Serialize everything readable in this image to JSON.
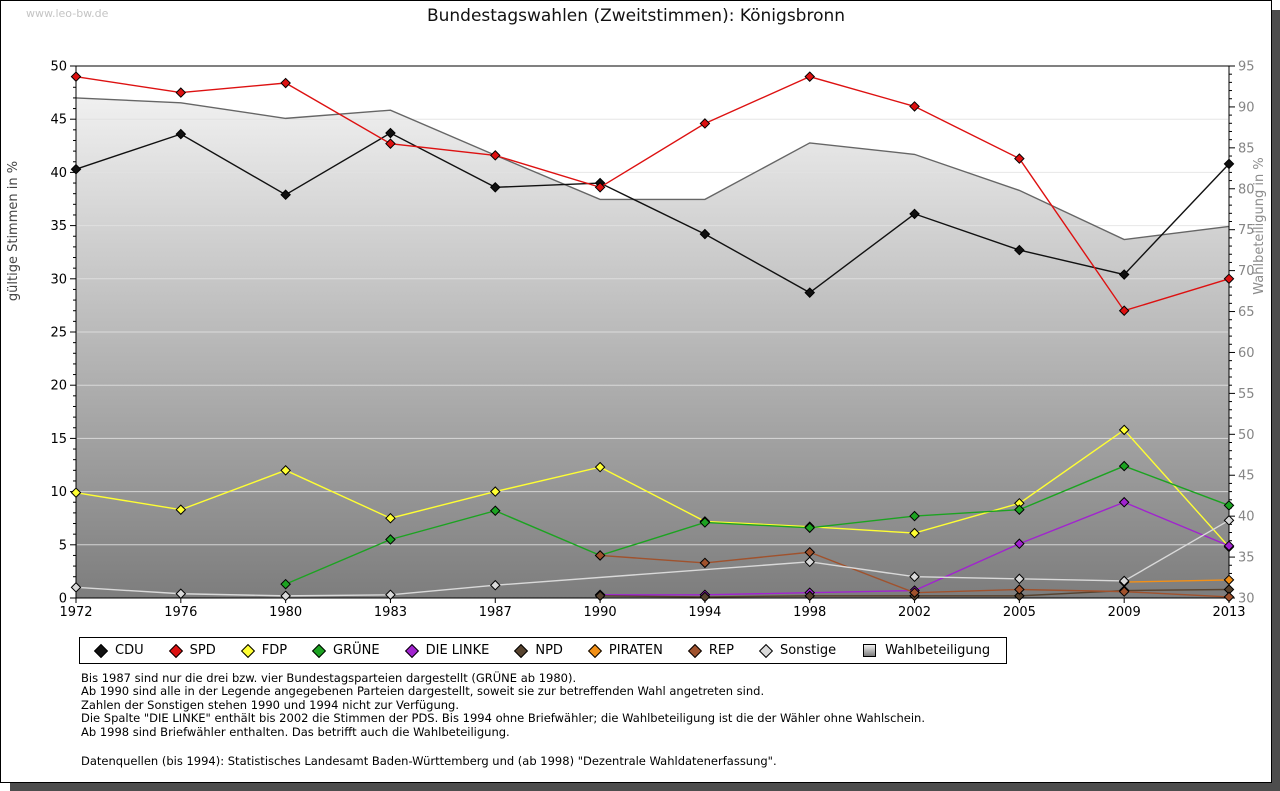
{
  "watermark": "www.leo-bw.de",
  "title": "Bundestagswahlen (Zweitstimmen): Königsbronn",
  "chart_data": {
    "type": "line",
    "x": [
      1972,
      1976,
      1980,
      1983,
      1987,
      1990,
      1994,
      1998,
      2002,
      2005,
      2009,
      2013
    ],
    "left_axis": {
      "label": "gültige Stimmen in %",
      "range": [
        0,
        50
      ],
      "tick_step": 5
    },
    "right_axis": {
      "label": "Wahlbeteiligung in %",
      "range": [
        30,
        95
      ],
      "tick_step": 5
    },
    "grid": "horizontal, every 5 units of left axis",
    "legend_position": "bottom",
    "series": [
      {
        "name": "CDU",
        "color": "#111111",
        "values": [
          40.3,
          43.6,
          37.9,
          43.7,
          38.6,
          39.0,
          34.2,
          28.7,
          36.1,
          32.7,
          30.4,
          40.8
        ]
      },
      {
        "name": "SPD",
        "color": "#dd1111",
        "values": [
          49.0,
          47.5,
          48.4,
          42.7,
          41.6,
          38.6,
          44.6,
          49.0,
          46.2,
          41.3,
          27.0,
          30.0
        ]
      },
      {
        "name": "FDP",
        "color": "#ffff33",
        "values": [
          9.9,
          8.3,
          12.0,
          7.5,
          10.0,
          12.3,
          7.2,
          6.7,
          6.1,
          8.9,
          15.8,
          4.8
        ]
      },
      {
        "name": "GRÜNE",
        "color": "#1ca321",
        "values": [
          null,
          null,
          1.3,
          5.5,
          8.2,
          4.0,
          7.1,
          6.6,
          7.7,
          8.3,
          12.4,
          8.7
        ]
      },
      {
        "name": "DIE LINKE",
        "color": "#a123cf",
        "values": [
          null,
          null,
          null,
          null,
          null,
          0.3,
          0.3,
          0.5,
          0.7,
          5.1,
          9.0,
          4.9
        ]
      },
      {
        "name": "NPD",
        "color": "#57432f",
        "values": [
          null,
          null,
          null,
          null,
          null,
          0.2,
          0.1,
          0.2,
          0.2,
          0.2,
          0.7,
          0.8
        ]
      },
      {
        "name": "PIRATEN",
        "color": "#f39016",
        "values": [
          null,
          null,
          null,
          null,
          null,
          null,
          null,
          null,
          null,
          null,
          1.5,
          1.7
        ]
      },
      {
        "name": "REP",
        "color": "#a0522d",
        "values": [
          null,
          null,
          null,
          null,
          null,
          4.0,
          3.3,
          4.3,
          0.5,
          0.8,
          0.6,
          0.1
        ]
      },
      {
        "name": "Sonstige",
        "color": "#d9d9d9",
        "values": [
          1.0,
          0.4,
          0.2,
          0.3,
          1.2,
          null,
          null,
          3.4,
          2.0,
          1.8,
          1.6,
          7.3
        ]
      }
    ],
    "turnout": {
      "name": "Wahlbeteiligung",
      "axis": "right",
      "edge_color": "#666666",
      "fill_top": "#f0f0f0",
      "fill_bottom": "#7d7d7d",
      "values": [
        91.1,
        90.5,
        88.6,
        89.6,
        84.1,
        78.7,
        78.7,
        85.6,
        84.2,
        79.8,
        73.8,
        75.4
      ]
    }
  },
  "footnotes": [
    "Bis 1987 sind nur die drei bzw. vier Bundestagsparteien dargestellt (GRÜNE ab 1980).",
    "Ab 1990 sind alle in der Legende angegebenen Parteien dargestellt, soweit sie zur betreffenden Wahl angetreten sind.",
    "Zahlen der Sonstigen stehen 1990 und 1994 nicht zur Verfügung.",
    "Die Spalte \"DIE LINKE\" enthält bis 2002 die Stimmen der PDS. Bis 1994 ohne Briefwähler; die Wahlbeteiligung ist die der Wähler ohne Wahlschein.",
    "Ab 1998 sind Briefwähler enthalten. Das betrifft auch die Wahlbeteiligung."
  ],
  "source": "Datenquellen (bis 1994): Statistisches Landesamt Baden-Württemberg und (ab 1998) \"Dezentrale Wahldatenerfassung\"."
}
